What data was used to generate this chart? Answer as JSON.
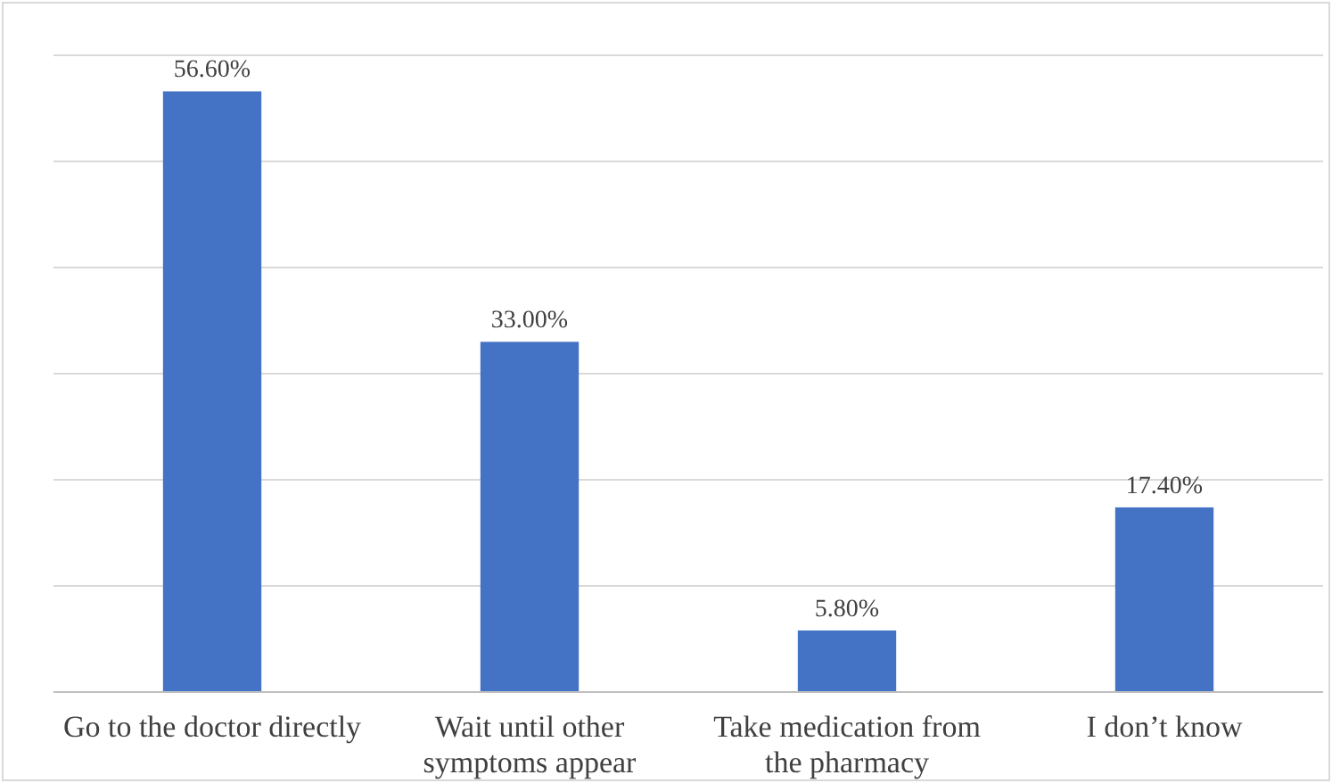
{
  "chart_data": {
    "type": "bar",
    "categories": [
      "Go to the doctor directly",
      "Wait until other symptoms appear",
      "Take medication from the pharmacy",
      "I don’t know"
    ],
    "values": [
      56.6,
      33.0,
      5.8,
      17.4
    ],
    "color": "#4472c4",
    "value_labels": [
      "56.60%",
      "33.00%",
      "5.80%",
      "17.40%"
    ],
    "ylim": [
      0,
      60
    ],
    "yticks": [
      {
        "value": 0,
        "label": null
      },
      {
        "value": 10,
        "label": null
      },
      {
        "value": 20,
        "label": null
      },
      {
        "value": 30,
        "label": null
      },
      {
        "value": 40,
        "label": null
      },
      {
        "value": 50,
        "label": null
      },
      {
        "value": 60,
        "label": null
      }
    ],
    "tick_labels": "x",
    "grid": "y"
  }
}
